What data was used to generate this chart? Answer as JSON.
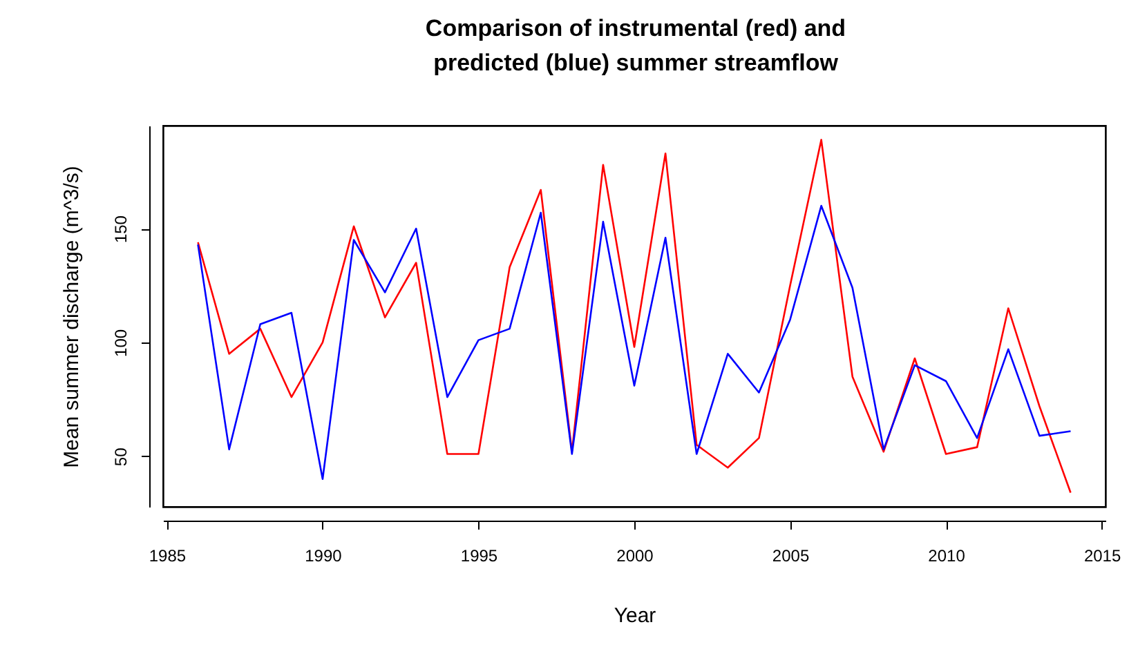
{
  "chart_data": {
    "type": "line",
    "title": "Comparison of instrumental (red) and predicted (blue) summer streamflow",
    "xlabel": "Year",
    "ylabel": "Mean summer discharge (m^3/s)",
    "x": [
      1986,
      1987,
      1988,
      1989,
      1990,
      1991,
      1992,
      1993,
      1994,
      1995,
      1996,
      1997,
      1998,
      1999,
      2000,
      2001,
      2002,
      2003,
      2004,
      2005,
      2006,
      2007,
      2008,
      2009,
      2010,
      2011,
      2012,
      2013,
      2014
    ],
    "series": [
      {
        "color": "#ff0000",
        "values": [
          144,
          95,
          106,
          76,
          100,
          151,
          111,
          135,
          51,
          51,
          133,
          167,
          52,
          178,
          98,
          183,
          55,
          45,
          58,
          125,
          189,
          85,
          52,
          93,
          51,
          54,
          115,
          72,
          34
        ]
      },
      {
        "color": "#0000ff",
        "values": [
          143,
          53,
          108,
          113,
          40,
          145,
          122,
          150,
          76,
          101,
          106,
          157,
          51,
          153,
          81,
          146,
          51,
          95,
          78,
          110,
          160,
          124,
          53,
          90,
          83,
          58,
          97,
          59,
          61
        ]
      }
    ],
    "xlim": [
      1984.88,
      2015.12
    ],
    "ylim": [
      27.8,
      195.2
    ],
    "xticks": [
      1985,
      1990,
      1995,
      2000,
      2005,
      2010,
      2015
    ],
    "yticks": [
      50,
      100,
      150
    ]
  }
}
